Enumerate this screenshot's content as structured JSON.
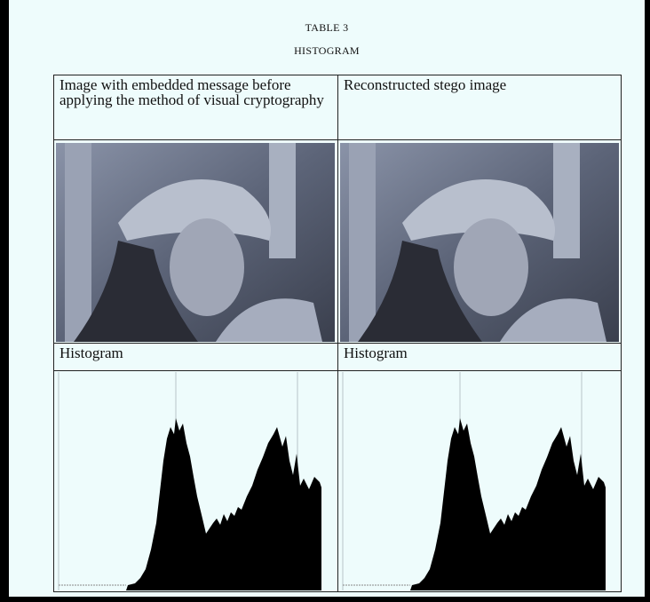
{
  "header": {
    "table_label": "TABLE 3",
    "title": "HISTOGRAM"
  },
  "table": {
    "rows": [
      [
        "Image with embedded message before applying the method of visual cryptography",
        "Reconstructed stego image"
      ],
      [
        "Histogram",
        "Histogram"
      ]
    ]
  }
}
